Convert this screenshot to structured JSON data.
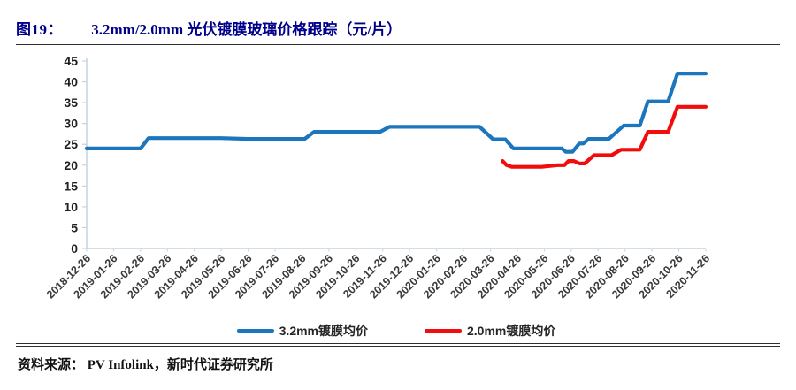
{
  "header": {
    "figure_label": "图19：",
    "title": "3.2mm/2.0mm 光伏镀膜玻璃价格跟踪（元/片）"
  },
  "footer": {
    "source_label": "资料来源：",
    "source_text": "PV Infolink，新时代证券研究所"
  },
  "colors": {
    "title_navy": "#00008b",
    "rule_dark": "#2e2e2e",
    "axis_line": "#c4d3e0",
    "blue_series": "#1b76bd",
    "red_series": "#f20d0d"
  },
  "chart_data": {
    "type": "line",
    "title": "3.2mm/2.0mm 光伏镀膜玻璃价格跟踪（元/片）",
    "xlabel": "",
    "ylabel": "",
    "ylim": [
      0,
      45
    ],
    "y_ticks": [
      0,
      5,
      10,
      15,
      20,
      25,
      30,
      35,
      40,
      45
    ],
    "grid": false,
    "legend_position": "bottom",
    "x_labels": [
      "2018-12-26",
      "2019-01-26",
      "2019-02-26",
      "2019-03-26",
      "2019-04-26",
      "2019-05-26",
      "2019-06-26",
      "2019-07-26",
      "2019-08-26",
      "2019-09-26",
      "2019-10-26",
      "2019-11-26",
      "2019-12-26",
      "2020-01-26",
      "2020-02-26",
      "2020-03-26",
      "2020-04-26",
      "2020-05-26",
      "2020-06-26",
      "2020-07-26",
      "2020-08-26",
      "2020-09-26",
      "2020-10-26",
      "2020-11-26"
    ],
    "x_unit": "month index into x_labels (0 = 2018-12-26, fractional = intra-month weekly steps)",
    "series": [
      {
        "name": "3.2mm镀膜均价",
        "color": "#1b76bd",
        "points": [
          [
            0,
            24
          ],
          [
            2,
            24
          ],
          [
            2.3,
            26.5
          ],
          [
            5,
            26.5
          ],
          [
            6,
            26.3
          ],
          [
            8.1,
            26.3
          ],
          [
            8.45,
            28
          ],
          [
            10.9,
            28
          ],
          [
            11.25,
            29.2
          ],
          [
            14.6,
            29.2
          ],
          [
            15.1,
            26.2
          ],
          [
            15.55,
            26.2
          ],
          [
            15.85,
            24
          ],
          [
            17.65,
            24
          ],
          [
            17.8,
            23.2
          ],
          [
            18.05,
            23.2
          ],
          [
            18.3,
            25.2
          ],
          [
            18.45,
            25.2
          ],
          [
            18.65,
            26.3
          ],
          [
            19.4,
            26.3
          ],
          [
            19.95,
            29.5
          ],
          [
            20.55,
            29.5
          ],
          [
            20.85,
            35.3
          ],
          [
            21.6,
            35.3
          ],
          [
            21.95,
            42
          ],
          [
            23,
            42
          ]
        ]
      },
      {
        "name": "2.0mm镀膜均价",
        "color": "#f20d0d",
        "points": [
          [
            15.45,
            21
          ],
          [
            15.6,
            20
          ],
          [
            15.8,
            19.6
          ],
          [
            16.9,
            19.6
          ],
          [
            17.5,
            20
          ],
          [
            17.75,
            20
          ],
          [
            17.9,
            21
          ],
          [
            18.1,
            21
          ],
          [
            18.3,
            20.4
          ],
          [
            18.5,
            20.4
          ],
          [
            18.85,
            22.4
          ],
          [
            19.5,
            22.4
          ],
          [
            19.85,
            23.7
          ],
          [
            20.55,
            23.7
          ],
          [
            20.85,
            28
          ],
          [
            21.6,
            28
          ],
          [
            21.95,
            34
          ],
          [
            23,
            34
          ]
        ]
      }
    ]
  }
}
